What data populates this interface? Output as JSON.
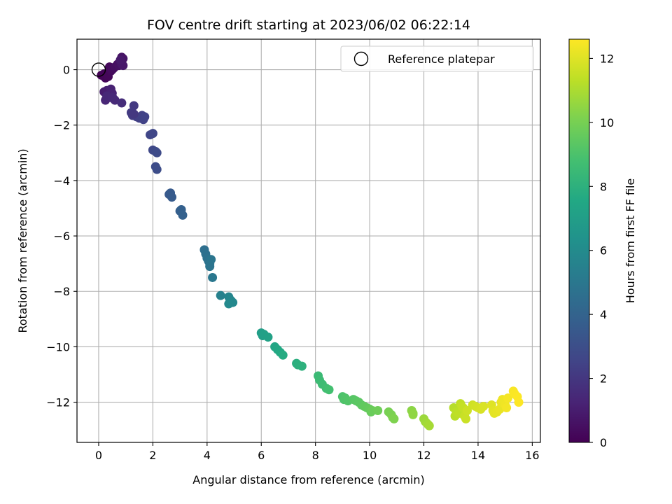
{
  "chart_data": {
    "type": "scatter",
    "title": "FOV centre drift starting at 2023/06/02 06:22:14",
    "xlabel": "Angular distance from reference (arcmin)",
    "ylabel": "Rotation from reference (arcmin)",
    "xlim": [
      -0.8,
      16.3
    ],
    "ylim": [
      -13.45,
      1.1
    ],
    "xticks": [
      0,
      2,
      4,
      6,
      8,
      10,
      12,
      14,
      16
    ],
    "yticks": [
      0,
      -2,
      -4,
      -6,
      -8,
      -10,
      -12
    ],
    "grid": true,
    "legend": {
      "placement": "top-right",
      "entries": [
        "Reference platepar"
      ]
    },
    "reference_point": {
      "x": 0,
      "y": 0
    },
    "colorbar": {
      "label": "Hours from first FF file",
      "range": [
        0,
        12.6
      ],
      "ticks": [
        0,
        2,
        4,
        6,
        8,
        10,
        12
      ],
      "colormap": "viridis"
    },
    "series": [
      {
        "x": [
          0.1,
          0.2,
          0.25,
          0.35,
          0.4,
          0.45,
          0.5,
          0.55,
          0.6,
          0.7,
          0.75,
          0.8,
          0.85,
          0.9,
          0.85,
          0.9,
          0.8,
          0.2,
          0.3,
          0.35,
          0.4,
          0.45,
          0.5,
          0.55,
          0.25,
          0.3,
          0.5,
          0.6,
          0.85,
          1.3,
          1.2,
          1.25,
          1.4,
          1.5,
          1.6,
          1.65,
          1.7,
          1.3,
          1.9,
          2.0,
          2.0,
          2.1,
          2.15,
          2.1,
          2.15,
          2.6,
          2.65,
          2.7,
          3.0,
          3.05,
          3.1,
          3.9,
          3.95,
          4.0,
          4.05,
          4.1,
          4.1,
          4.15,
          4.2,
          4.5,
          4.8,
          4.85,
          4.9,
          4.95,
          4.8,
          6.0,
          6.05,
          6.1,
          6.25,
          6.5,
          6.6,
          6.7,
          6.8,
          7.3,
          7.35,
          7.5,
          8.1,
          8.15,
          8.25,
          8.4,
          8.5,
          9.0,
          9.05,
          9.1,
          9.2,
          9.4,
          9.5,
          9.6,
          9.7,
          9.8,
          9.9,
          10.0,
          10.05,
          10.1,
          10.3,
          10.7,
          10.8,
          10.85,
          10.9,
          11.55,
          11.6,
          11.6,
          12.0,
          12.05,
          12.1,
          12.15,
          12.2,
          13.1,
          13.15,
          13.2,
          13.3,
          13.35,
          13.4,
          13.45,
          13.5,
          13.55,
          13.6,
          13.8,
          13.9,
          14.0,
          14.1,
          14.2,
          14.5,
          14.55,
          14.6,
          14.7,
          14.8,
          14.85,
          14.9,
          15.0,
          15.05,
          15.1,
          15.3,
          15.35,
          15.45,
          15.5
        ],
        "y": [
          -0.2,
          -0.15,
          -0.3,
          -0.25,
          0.1,
          -0.05,
          0.0,
          0.05,
          0.1,
          0.2,
          0.15,
          0.3,
          0.45,
          0.4,
          0.2,
          0.15,
          0.35,
          -0.8,
          -0.75,
          -0.9,
          -1.0,
          -0.7,
          -0.85,
          -1.05,
          -1.1,
          -0.95,
          -1.0,
          -1.1,
          -1.2,
          -1.3,
          -1.55,
          -1.65,
          -1.7,
          -1.75,
          -1.65,
          -1.8,
          -1.7,
          -1.6,
          -2.35,
          -2.3,
          -2.9,
          -2.95,
          -3.0,
          -3.5,
          -3.6,
          -4.5,
          -4.45,
          -4.6,
          -5.1,
          -5.05,
          -5.25,
          -6.5,
          -6.65,
          -6.8,
          -6.9,
          -7.0,
          -7.1,
          -6.85,
          -7.5,
          -8.15,
          -8.2,
          -8.3,
          -8.35,
          -8.4,
          -8.45,
          -9.5,
          -9.6,
          -9.55,
          -9.65,
          -10.0,
          -10.1,
          -10.2,
          -10.3,
          -10.6,
          -10.65,
          -10.7,
          -11.05,
          -11.2,
          -11.35,
          -11.5,
          -11.55,
          -11.8,
          -11.9,
          -11.85,
          -11.95,
          -11.9,
          -11.95,
          -12.0,
          -12.1,
          -12.15,
          -12.2,
          -12.25,
          -12.35,
          -12.3,
          -12.3,
          -12.35,
          -12.45,
          -12.55,
          -12.6,
          -12.3,
          -12.4,
          -12.45,
          -12.6,
          -12.7,
          -12.75,
          -12.8,
          -12.85,
          -12.2,
          -12.5,
          -12.35,
          -12.4,
          -12.05,
          -12.15,
          -12.2,
          -12.5,
          -12.6,
          -12.3,
          -12.1,
          -12.15,
          -12.2,
          -12.25,
          -12.15,
          -12.1,
          -12.3,
          -12.4,
          -12.35,
          -12.25,
          -12.0,
          -11.9,
          -12.1,
          -12.2,
          -11.85,
          -11.6,
          -11.7,
          -11.8,
          -12.0
        ],
        "c": [
          0.05,
          0.1,
          0.15,
          0.2,
          0.25,
          0.3,
          0.35,
          0.4,
          0.45,
          0.5,
          0.55,
          0.6,
          0.65,
          0.7,
          0.75,
          0.8,
          0.85,
          1.0,
          1.05,
          1.1,
          1.15,
          1.2,
          1.25,
          1.3,
          1.35,
          1.4,
          1.45,
          1.5,
          1.6,
          2.1,
          2.15,
          2.2,
          2.3,
          2.35,
          2.4,
          2.45,
          2.5,
          2.05,
          2.6,
          2.65,
          2.7,
          2.8,
          2.85,
          2.9,
          2.95,
          3.5,
          3.55,
          3.6,
          3.8,
          3.85,
          3.9,
          4.6,
          4.65,
          4.7,
          4.75,
          4.8,
          4.85,
          4.9,
          5.0,
          5.5,
          5.7,
          5.75,
          5.8,
          5.85,
          5.9,
          7.0,
          7.05,
          7.1,
          7.2,
          7.4,
          7.5,
          7.6,
          7.7,
          7.9,
          7.95,
          8.0,
          8.5,
          8.55,
          8.6,
          8.7,
          8.8,
          9.0,
          9.05,
          9.1,
          9.15,
          9.25,
          9.3,
          9.35,
          9.4,
          9.5,
          9.55,
          9.6,
          9.65,
          9.7,
          9.8,
          10.0,
          10.05,
          10.1,
          10.15,
          10.4,
          10.45,
          10.5,
          10.7,
          10.75,
          10.8,
          10.85,
          10.9,
          11.2,
          11.25,
          11.3,
          11.35,
          11.4,
          11.45,
          11.5,
          11.55,
          11.6,
          11.65,
          11.7,
          11.75,
          11.8,
          11.85,
          11.9,
          12.0,
          12.05,
          12.1,
          12.15,
          12.2,
          12.25,
          12.3,
          12.35,
          12.4,
          12.45,
          12.5,
          12.55,
          12.58,
          12.6
        ]
      }
    ]
  }
}
